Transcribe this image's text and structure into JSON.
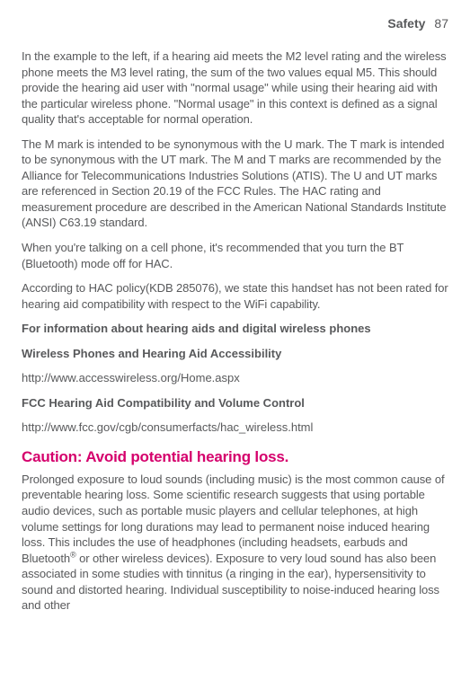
{
  "header": {
    "title": "Safety",
    "page_number": "87"
  },
  "paragraphs": {
    "p1": "In the example to the left, if a hearing aid meets the M2 level rating and the wireless phone meets the M3 level rating, the sum of the two values equal M5. This should provide the hearing aid user with \"normal usage\" while using their hearing aid with the particular wireless phone. \"Normal usage\" in this context is defined as a signal quality that's acceptable for normal operation.",
    "p2": "The M mark is intended to be synonymous with the U mark. The T mark is intended to be synonymous with the UT mark. The M and T marks are recommended by the Alliance for Telecommunications Industries Solutions (ATIS). The U and UT marks are referenced in Section 20.19 of the FCC Rules. The HAC rating and measurement procedure are described in the American National Standards Institute (ANSI) C63.19 standard.",
    "p3": "When you're talking on a cell phone, it's recommended that you turn the BT (Bluetooth) mode off for HAC.",
    "p4": "According to HAC policy(KDB 285076), we state this handset has not been rated for hearing aid compatibility with respect to the WiFi capability.",
    "b1": "For information about hearing aids and digital wireless phones",
    "b2": "Wireless Phones and Hearing Aid Accessibility",
    "link1": "http://www.accesswireless.org/Home.aspx",
    "b3": "FCC Hearing Aid Compatibility and Volume Control",
    "link2": "http://www.fcc.gov/cgb/consumerfacts/hac_wireless.html",
    "caution": "Caution: Avoid potential hearing loss.",
    "p5_pre": "Prolonged exposure to loud sounds (including music) is the most common cause of preventable hearing loss. Some scientific research suggests that using portable audio devices, such as portable music players and cellular telephones, at high volume settings for long durations may lead to permanent noise induced hearing loss. This includes the use of headphones (including headsets, earbuds and Bluetooth",
    "p5_sup": "®",
    "p5_post": " or other wireless devices). Exposure to very loud sound has also been associated in some studies with tinnitus (a ringing in the ear), hypersensitivity to sound and distorted hearing. Individual susceptibility to noise-induced hearing loss and other"
  },
  "colors": {
    "text": "#58595b",
    "accent": "#d5006c",
    "background": "#ffffff"
  }
}
